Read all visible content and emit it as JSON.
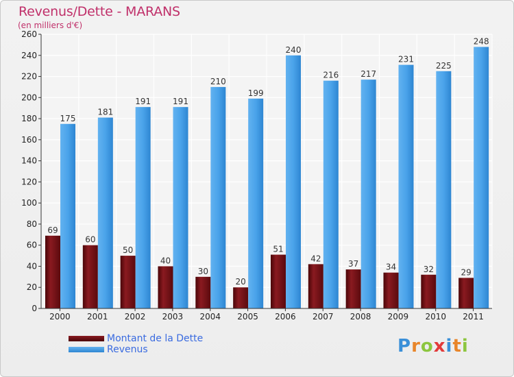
{
  "title": "Revenus/Dette - MARANS",
  "subtitle": "(en milliers d'€)",
  "logo_text": "Proxiti",
  "colors": {
    "title": "#c0306a",
    "debt": "#6b0d12",
    "revenue": "#3f9ae3",
    "legend_text": "#3a6be0"
  },
  "legend": [
    {
      "label": "Montant de la Dette",
      "color": "#6b0d12"
    },
    {
      "label": "Revenus",
      "color": "#3f9ae3"
    }
  ],
  "chart_data": {
    "type": "bar",
    "title": "Revenus/Dette - MARANS",
    "subtitle": "(en milliers d'€)",
    "categories": [
      "2000",
      "2001",
      "2002",
      "2003",
      "2004",
      "2005",
      "2006",
      "2007",
      "2008",
      "2009",
      "2010",
      "2011"
    ],
    "series": [
      {
        "name": "Montant de la Dette",
        "values": [
          69,
          60,
          50,
          40,
          30,
          20,
          51,
          42,
          37,
          34,
          32,
          29
        ]
      },
      {
        "name": "Revenus",
        "values": [
          175,
          181,
          191,
          191,
          210,
          199,
          240,
          216,
          217,
          231,
          225,
          248
        ]
      }
    ],
    "ylim": [
      0,
      260
    ],
    "yticks": [
      0,
      20,
      40,
      60,
      80,
      100,
      120,
      140,
      160,
      180,
      200,
      220,
      240,
      260
    ],
    "grid": true,
    "legend_position": "bottom-left"
  }
}
